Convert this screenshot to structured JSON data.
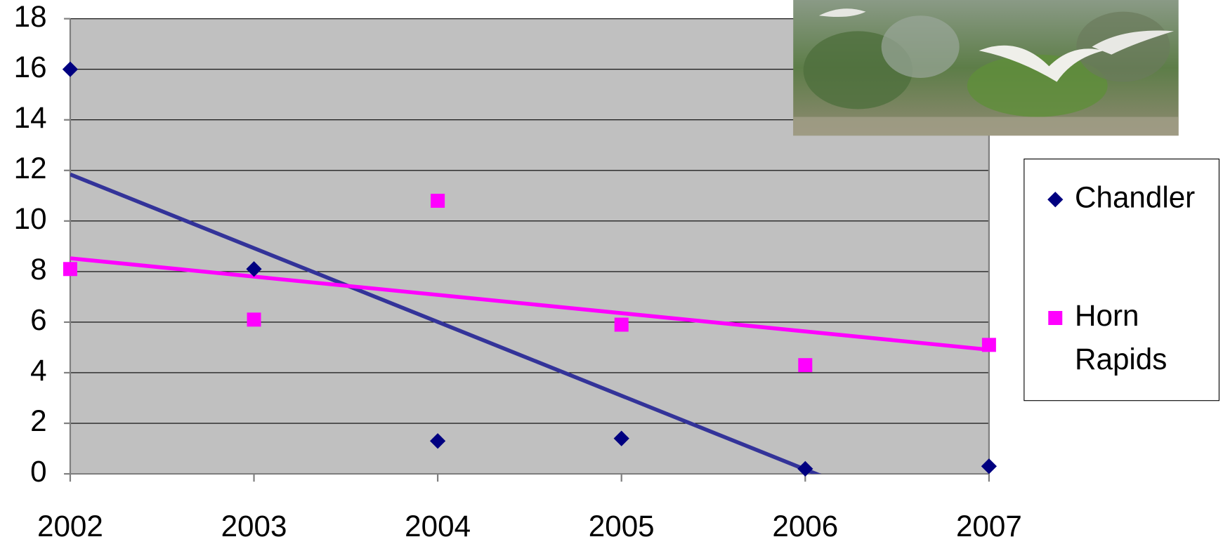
{
  "chart_data": {
    "type": "scatter",
    "x": [
      2002,
      2003,
      2004,
      2005,
      2006,
      2007
    ],
    "series": [
      {
        "name": "Chandler",
        "color": "#000080",
        "marker": "diamond",
        "trendline_color": "#333399",
        "values": [
          16,
          8.1,
          1.3,
          1.4,
          0.2,
          0.3
        ]
      },
      {
        "name": "Horn Rapids",
        "color": "#ff00ff",
        "marker": "square",
        "trendline_color": "#ff00ff",
        "values": [
          8.1,
          6.1,
          10.8,
          5.9,
          4.3,
          5.1
        ]
      }
    ],
    "trendline": "linear",
    "xlim": [
      2002,
      2007
    ],
    "xticks": [
      2002,
      2003,
      2004,
      2005,
      2006,
      2007
    ],
    "ylim": [
      0,
      18
    ],
    "yticks": [
      0,
      2,
      4,
      6,
      8,
      10,
      12,
      14,
      16,
      18
    ],
    "grid": true,
    "plot_background": "#c0c0c0",
    "legend": "right"
  }
}
